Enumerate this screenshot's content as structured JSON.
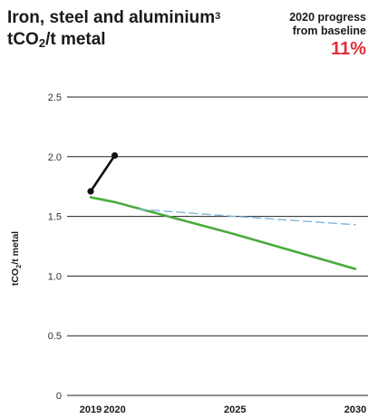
{
  "header": {
    "title_line1": "Iron, steel and aluminium",
    "footnote_marker": "3",
    "unit_prefix": "tCO",
    "unit_sub": "2",
    "unit_suffix": "/t metal"
  },
  "progress": {
    "label_line1": "2020 progress",
    "label_line2": "from baseline",
    "value": "11%",
    "value_color": "#e0303a"
  },
  "chart_data": {
    "type": "line",
    "ylabel_prefix": "tCO",
    "ylabel_sub": "2",
    "ylabel_suffix": "/t metal",
    "ylim": [
      0,
      2.5
    ],
    "xlim": [
      2019,
      2030
    ],
    "y_ticks": [
      "0",
      "0.5",
      "1.0",
      "1.5",
      "2.0",
      "2.5"
    ],
    "y_tick_values": [
      0,
      0.5,
      1.0,
      1.5,
      2.0,
      2.5
    ],
    "x_ticks": [
      "2019",
      "2020",
      "2025",
      "2030"
    ],
    "x_tick_values": [
      2019,
      2020,
      2025,
      2030
    ],
    "grid": true,
    "series": [
      {
        "color": "#111111",
        "style": "solid",
        "markers": true,
        "x": [
          2019,
          2020
        ],
        "y": [
          1.71,
          2.01
        ]
      },
      {
        "color": "#4aab3c",
        "style": "solid",
        "markers": false,
        "x": [
          2019,
          2020,
          2025,
          2030
        ],
        "y": [
          1.66,
          1.62,
          1.35,
          1.06
        ]
      },
      {
        "color": "#7fb6d9",
        "style": "dashed",
        "markers": false,
        "x": [
          2021,
          2025,
          2030
        ],
        "y": [
          1.56,
          1.5,
          1.43
        ]
      }
    ]
  }
}
